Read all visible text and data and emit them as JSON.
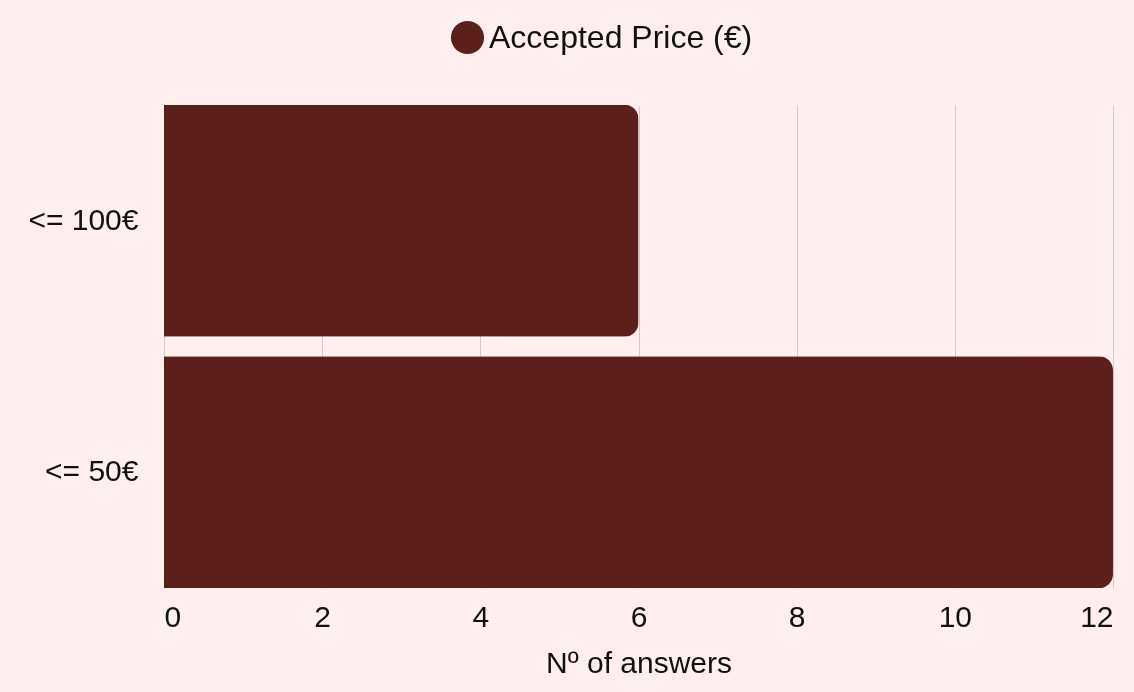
{
  "chart_data": {
    "type": "bar",
    "orientation": "horizontal",
    "categories": [
      "<= 100€",
      "<= 50€"
    ],
    "series": [
      {
        "name": "Accepted Price (€)",
        "color": "#5c1f1b",
        "values": [
          6,
          12
        ]
      }
    ],
    "xlabel": "Nº of answers",
    "xlim": [
      0,
      12
    ],
    "xticks": [
      0,
      2,
      4,
      6,
      8,
      10,
      12
    ],
    "grid": "x",
    "legend": "top"
  }
}
